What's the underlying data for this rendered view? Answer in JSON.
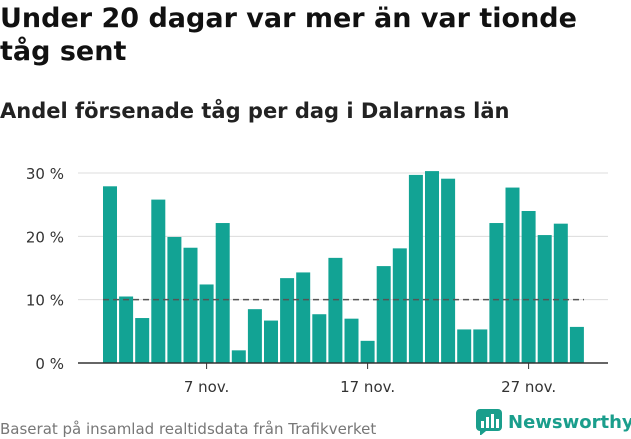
{
  "title": "Under 20 dagar var mer än var tionde tåg sent",
  "subtitle": "Andel försenade tåg per dag i Dalarnas län",
  "footer": "Baserat på insamlad realtidsdata från Trafikverket",
  "brand": {
    "name": "Newsworthy",
    "icon": "newsworthy-logo-icon",
    "color": "#1a9e8c"
  },
  "chart_data": {
    "type": "bar",
    "categories": [
      "1 nov.",
      "2 nov.",
      "3 nov.",
      "4 nov.",
      "5 nov.",
      "6 nov.",
      "7 nov.",
      "8 nov.",
      "9 nov.",
      "10 nov.",
      "11 nov.",
      "12 nov.",
      "13 nov.",
      "14 nov.",
      "15 nov.",
      "16 nov.",
      "17 nov.",
      "18 nov.",
      "19 nov.",
      "20 nov.",
      "21 nov.",
      "22 nov.",
      "23 nov.",
      "24 nov.",
      "25 nov.",
      "26 nov.",
      "27 nov.",
      "28 nov.",
      "29 nov.",
      "30 nov."
    ],
    "values": [
      27.9,
      10.5,
      7.1,
      25.8,
      19.9,
      18.2,
      12.4,
      22.1,
      2.0,
      8.5,
      6.7,
      13.4,
      14.3,
      7.7,
      16.6,
      7.0,
      3.5,
      15.3,
      18.1,
      29.7,
      30.3,
      29.1,
      5.3,
      5.3,
      22.1,
      27.7,
      24.0,
      20.2,
      22.0,
      5.7
    ],
    "bar_color": "#12a394",
    "reference_line": {
      "value": 10,
      "style": "dashed"
    },
    "ylim": [
      0,
      30
    ],
    "yticks": [
      0,
      10,
      20,
      30
    ],
    "ytick_labels": [
      "0 %",
      "10 %",
      "20 %",
      "30 %"
    ],
    "xtick_labels": [
      {
        "category": "7 nov.",
        "label": "7 nov."
      },
      {
        "category": "17 nov.",
        "label": "17 nov."
      },
      {
        "category": "27 nov.",
        "label": "27 nov."
      }
    ],
    "grid": true
  }
}
